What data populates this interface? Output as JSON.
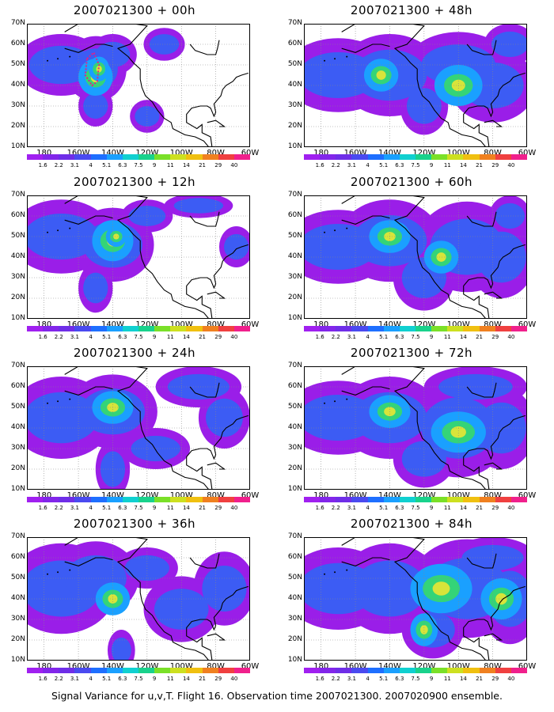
{
  "caption": "Signal Variance for u,v,T. Flight 16. Observation time 2007021300. 2007020900 ensemble.",
  "chart_data": {
    "type": "heatmap",
    "panels": [
      {
        "title": "2007021300 + 00h"
      },
      {
        "title": "2007021300 + 48h"
      },
      {
        "title": "2007021300 + 12h"
      },
      {
        "title": "2007021300 + 60h"
      },
      {
        "title": "2007021300 + 24h"
      },
      {
        "title": "2007021300 + 72h"
      },
      {
        "title": "2007021300 + 36h"
      },
      {
        "title": "2007021300 + 84h"
      }
    ],
    "y_ticks": [
      "70N",
      "60N",
      "50N",
      "40N",
      "30N",
      "20N",
      "10N"
    ],
    "x_ticks": [
      "180",
      "160W",
      "140W",
      "120W",
      "100W",
      "80W",
      "60W"
    ],
    "colorbar_labels": [
      "1.6",
      "2.2",
      "3.1",
      "4",
      "5.1",
      "6.3",
      "7.5",
      "9",
      "11",
      "14",
      "21",
      "29",
      "40"
    ],
    "colorbar_colors": [
      "#a020f0",
      "#8226ea",
      "#6f2ee8",
      "#4a4af0",
      "#1e6fff",
      "#1aa0ff",
      "#10d0d0",
      "#19d28c",
      "#7ae028",
      "#cde020",
      "#f0c010",
      "#f08020",
      "#f04040",
      "#f0208c"
    ],
    "grid": true,
    "lat_range": [
      10,
      70
    ],
    "lon_range": [
      -190,
      -60
    ]
  }
}
